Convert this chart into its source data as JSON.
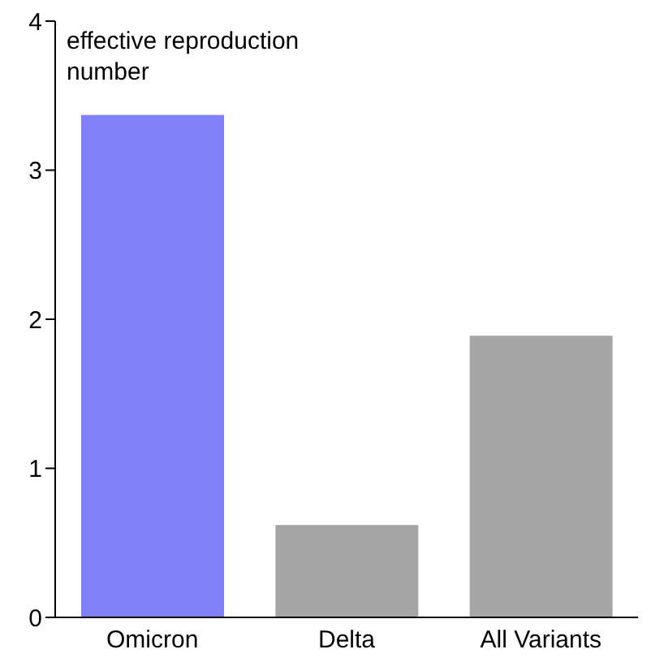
{
  "chart_data": {
    "type": "bar",
    "ylabel": "effective reproduction number",
    "categories": [
      "Omicron",
      "Delta",
      "All Variants"
    ],
    "values": [
      3.37,
      0.62,
      1.89
    ],
    "colors": [
      "#8080f8",
      "#a6a6a6",
      "#a6a6a6"
    ],
    "ylim": [
      0,
      4
    ],
    "yticks": [
      0,
      1,
      2,
      3,
      4
    ],
    "grid": false,
    "legend": false
  }
}
